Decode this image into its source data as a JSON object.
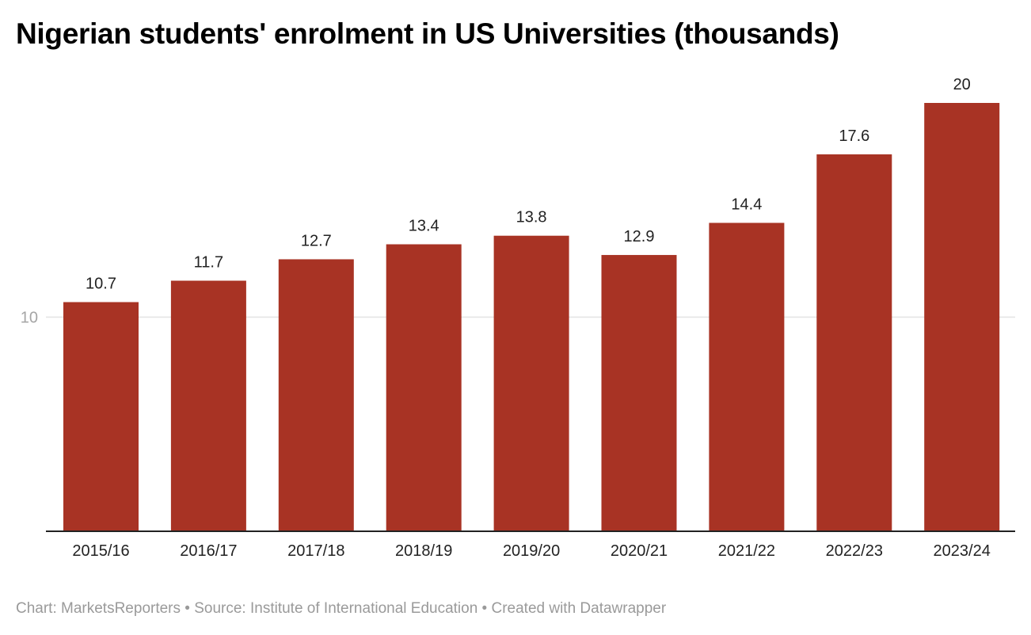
{
  "chart_data": {
    "type": "bar",
    "title": "Nigerian students' enrolment in US Universities (thousands)",
    "categories": [
      "2015/16",
      "2016/17",
      "2017/18",
      "2018/19",
      "2019/20",
      "2020/21",
      "2021/22",
      "2022/23",
      "2023/24"
    ],
    "values": [
      10.7,
      11.7,
      12.7,
      13.4,
      13.8,
      12.9,
      14.4,
      17.6,
      20
    ],
    "data_labels": [
      "10.7",
      "11.7",
      "12.7",
      "13.4",
      "13.8",
      "12.9",
      "14.4",
      "17.6",
      "20"
    ],
    "y_ticks": [
      10
    ],
    "y_tick_labels": [
      "10"
    ],
    "ylim": [
      0,
      20
    ],
    "grid": true,
    "bar_color": "#a83324",
    "xlabel": "",
    "ylabel": ""
  },
  "footer": "Chart: MarketsReporters • Source: Institute of International Education • Created with Datawrapper"
}
